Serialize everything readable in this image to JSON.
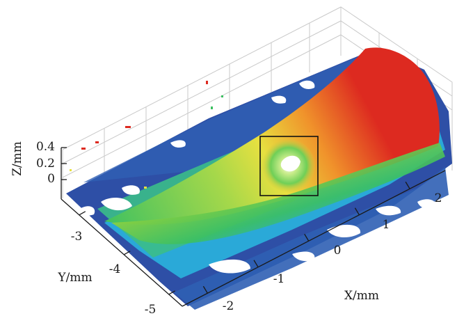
{
  "chart_data": {
    "type": "surface",
    "xlabel": "X/mm",
    "ylabel": "Y/mm",
    "zlabel": "Z/mm",
    "x_ticks": [
      "-2",
      "-1",
      "0",
      "1",
      "2"
    ],
    "y_ticks": [
      "-5",
      "-4",
      "-3"
    ],
    "z_ticks": [
      "0",
      "0.2",
      "0.4"
    ],
    "xlim": [
      -2.5,
      2.7
    ],
    "ylim": [
      -5.3,
      -2.6
    ],
    "zlim": [
      0,
      0.4
    ],
    "colormap": [
      "#2e4fa6",
      "#2aa9d8",
      "#3cc061",
      "#e7e040",
      "#f0932b",
      "#dd2a20"
    ],
    "grid": true,
    "annotation": "highlighted defect region (square box)"
  }
}
